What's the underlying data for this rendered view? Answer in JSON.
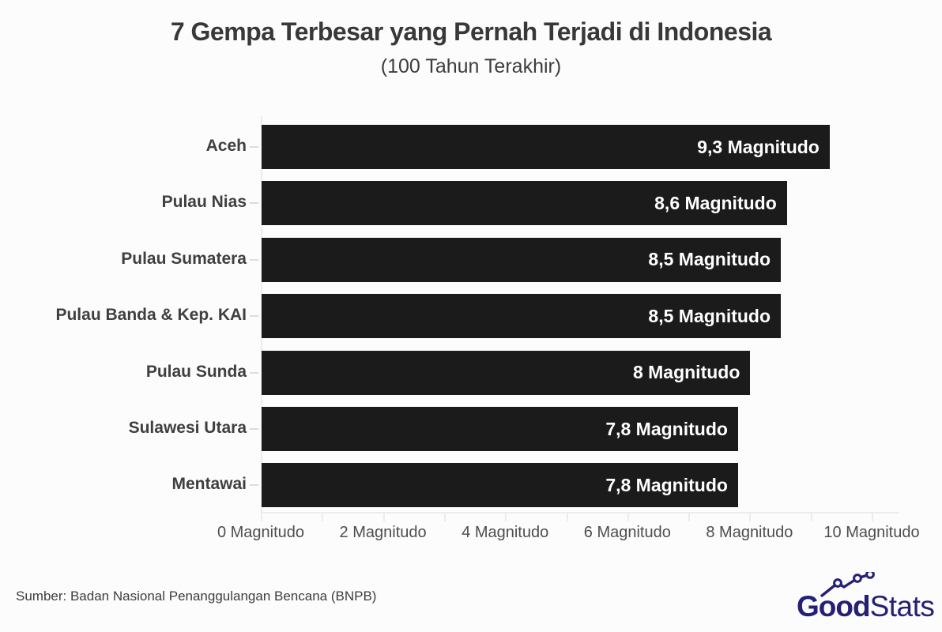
{
  "chart_data": {
    "type": "bar",
    "orientation": "horizontal",
    "title": "7 Gempa Terbesar yang Pernah Terjadi di Indonesia",
    "subtitle": "(100 Tahun Terakhir)",
    "categories": [
      "Aceh",
      "Pulau Nias",
      "Pulau Sumatera",
      "Pulau Banda & Kep. KAI",
      "Pulau Sunda",
      "Sulawesi Utara",
      "Mentawai"
    ],
    "values": [
      9.3,
      8.6,
      8.5,
      8.5,
      8,
      7.8,
      7.8
    ],
    "value_labels": [
      "9,3 Magnitudo",
      "8,6 Magnitudo",
      "8,5 Magnitudo",
      "8,5 Magnitudo",
      "8 Magnitudo",
      "7,8 Magnitudo",
      "7,8 Magnitudo"
    ],
    "xlim": [
      0,
      10
    ],
    "x_minor_tick_step": 1,
    "x_tick_values": [
      0,
      2,
      4,
      6,
      8,
      10
    ],
    "x_tick_labels": [
      "0 Magnitudo",
      "2 Magnitudo",
      "4 Magnitudo",
      "6 Magnitudo",
      "8 Magnitudo",
      "10 Magnitudo"
    ],
    "grid": false,
    "legend": false,
    "bar_color": "#1b1b1b",
    "value_label_color": "#ffffff",
    "axis_color": "#ececec",
    "label_color": "#3f3f3f"
  },
  "footer": {
    "source": "Sumber: Badan Nasional Penanggulangan Bencana (BNPB)",
    "logo": {
      "bold_text": "Good",
      "light_text": "Stats",
      "color": "#232076",
      "icon": "rising-trend-line-icon"
    }
  }
}
